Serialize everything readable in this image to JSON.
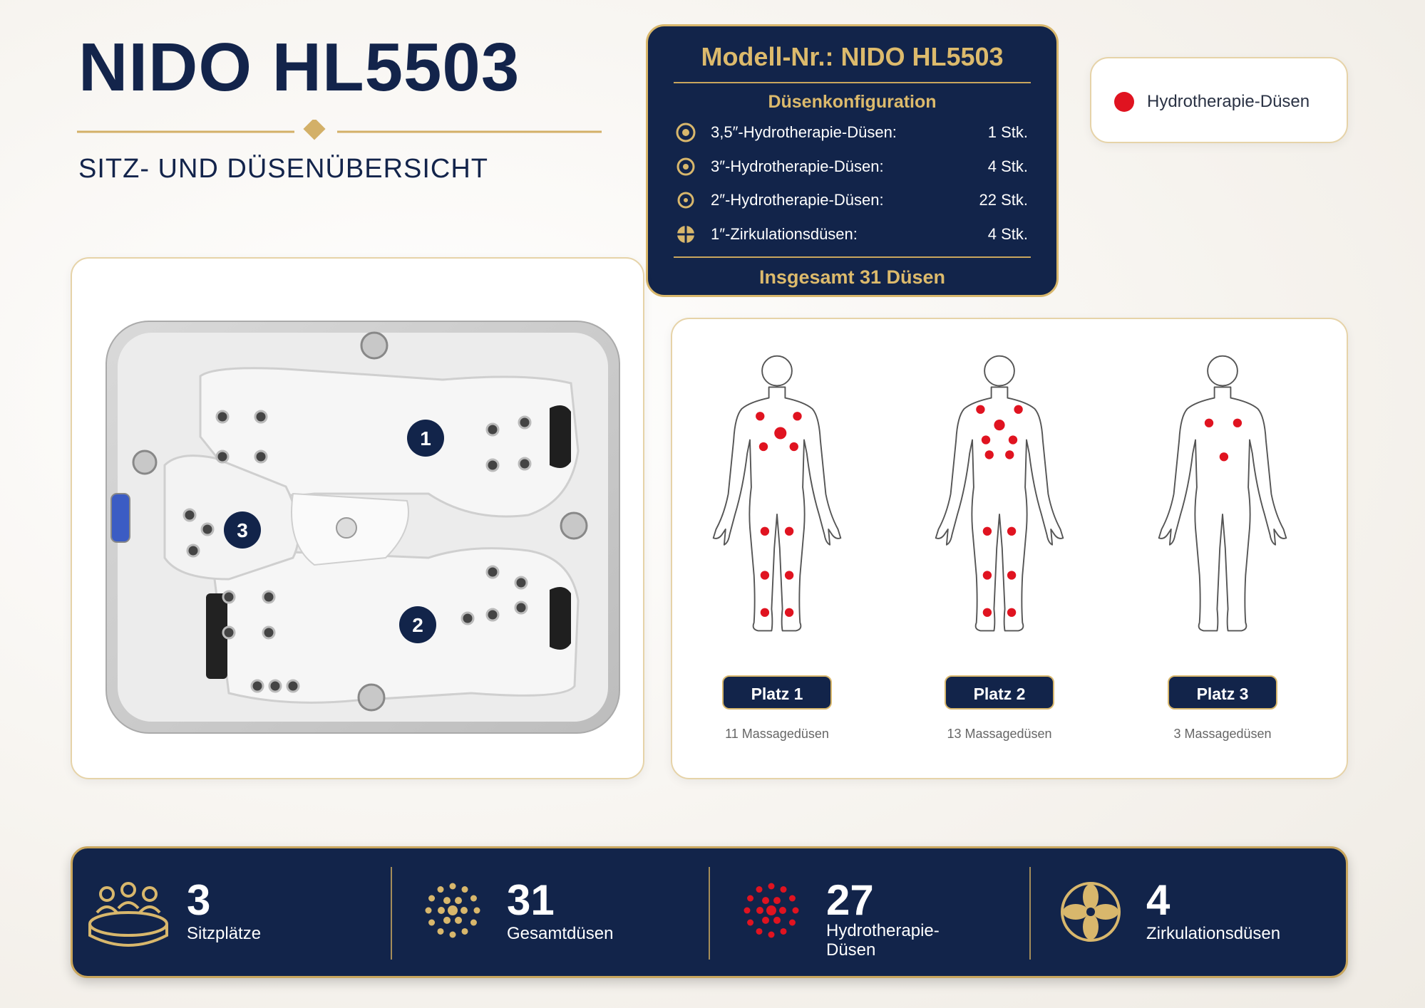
{
  "header": {
    "title": "NIDO HL5503",
    "subtitle": "SITZ- UND DÜSENÜBERSICHT"
  },
  "config": {
    "title": "Modell-Nr.: NIDO HL5503",
    "heading": "Düsenkonfiguration",
    "rows": [
      {
        "label": "3,5″-Hydrotherapie-Düsen:",
        "count": "1 Stk."
      },
      {
        "label": "3″-Hydrotherapie-Düsen:",
        "count": "4 Stk."
      },
      {
        "label": "2″-Hydrotherapie-Düsen:",
        "count": "22 Stk."
      },
      {
        "label": "1″-Zirkulationsdüsen:",
        "count": "4 Stk."
      }
    ],
    "total": "Insgesamt 31 Düsen"
  },
  "legend": {
    "label": "Hydrotherapie-Düsen"
  },
  "tub": {
    "seat_numbers": [
      "1",
      "2",
      "3"
    ]
  },
  "seats": [
    {
      "label": "Platz 1",
      "jets": "11 Massagedüsen"
    },
    {
      "label": "Platz 2",
      "jets": "13 Massagedüsen"
    },
    {
      "label": "Platz 3",
      "jets": "3 Massagedüsen"
    }
  ],
  "stats": [
    {
      "value": "3",
      "label": "Sitzplätze"
    },
    {
      "value": "31",
      "label": "Gesamtdüsen"
    },
    {
      "value": "27",
      "label": "Hydrotherapie-Düsen"
    },
    {
      "value": "4",
      "label": "Zirkulationsdüsen"
    }
  ]
}
